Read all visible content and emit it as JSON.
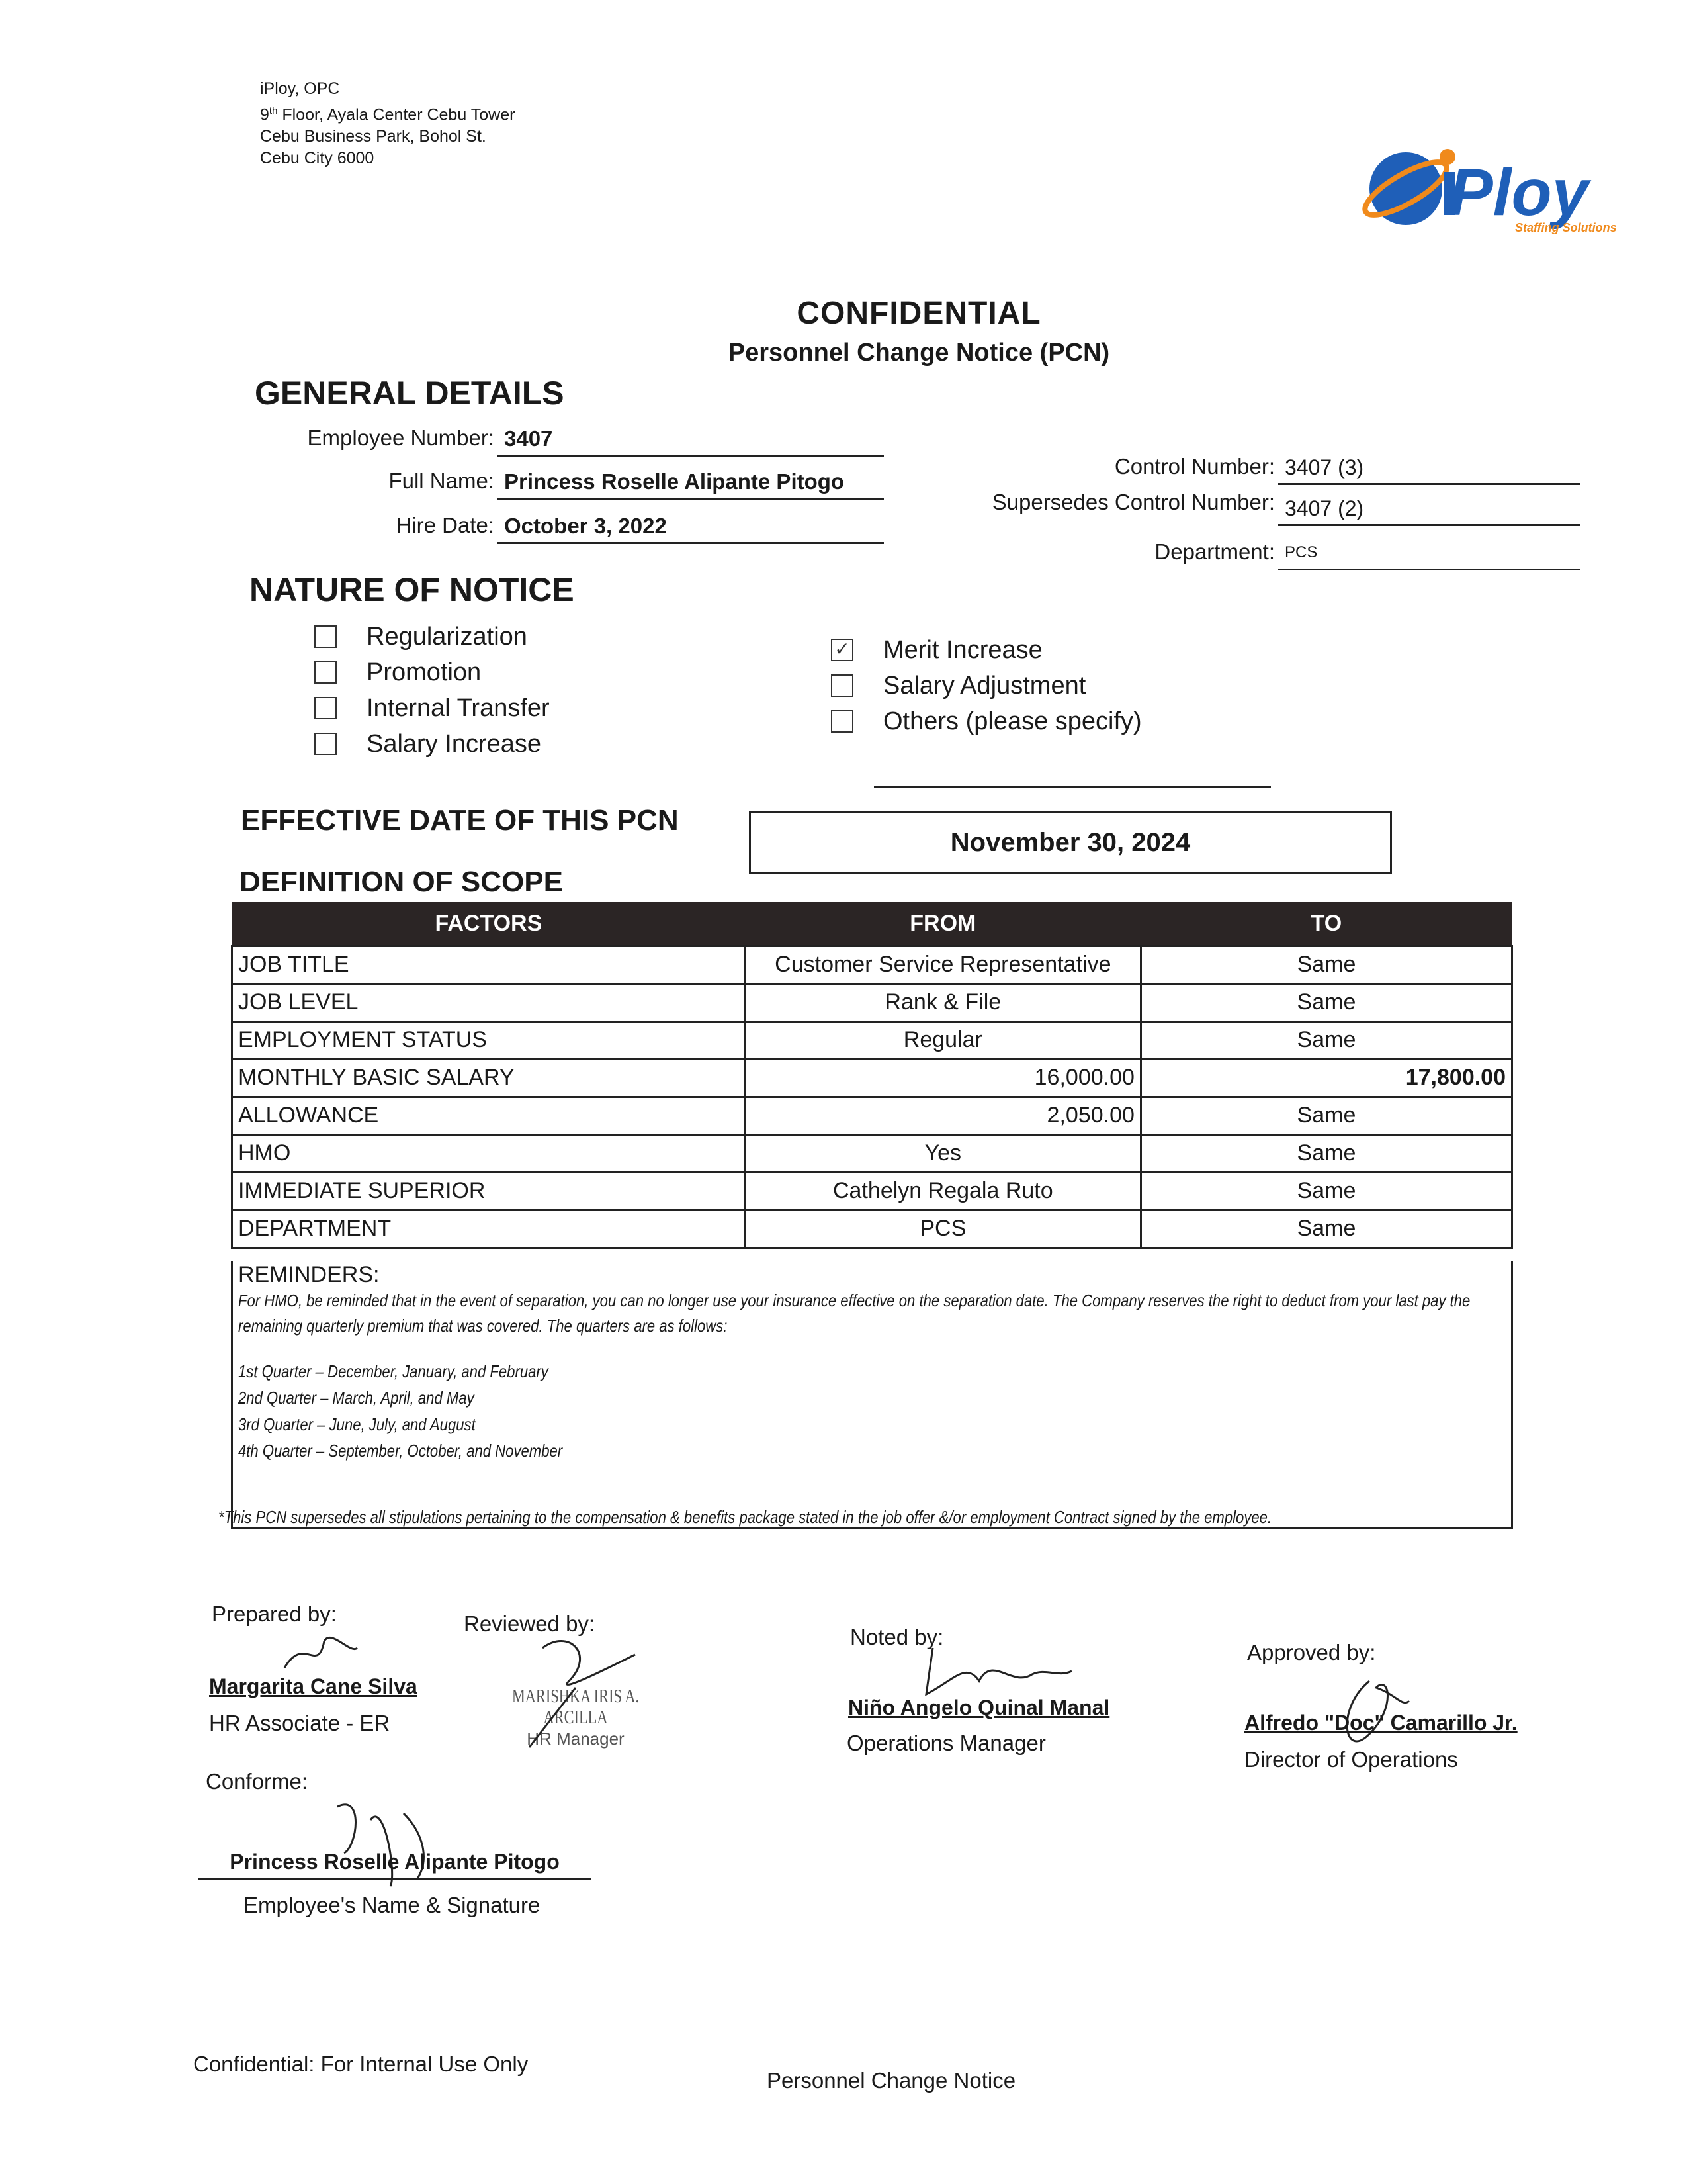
{
  "company_address": {
    "line1": "iPloy, OPC",
    "line2_num": "9",
    "line2_sup": "th",
    "line2_rest": " Floor, Ayala Center Cebu Tower",
    "line3": "Cebu Business Park, Bohol St.",
    "line4": "Cebu City 6000"
  },
  "logo": {
    "text": "iPloy",
    "tagline": "Staffing Solutions",
    "colors": {
      "blue": "#1f5fb8",
      "orange": "#f08a1c"
    }
  },
  "title": "CONFIDENTIAL",
  "subtitle": "Personnel Change Notice (PCN)",
  "general": {
    "heading": "GENERAL DETAILS",
    "employee_number_label": "Employee Number:",
    "employee_number": "3407",
    "full_name_label": "Full Name:",
    "full_name": "Princess Roselle Alipante Pitogo",
    "hire_date_label": "Hire Date:",
    "hire_date": "October 3, 2022",
    "control_number_label": "Control Number:",
    "control_number": "3407 (3)",
    "supersedes_label": "Supersedes Control Number:",
    "supersedes": "3407 (2)",
    "department_label": "Department:",
    "department": "PCS"
  },
  "nature": {
    "heading": "NATURE OF NOTICE",
    "options": [
      {
        "label": "Regularization",
        "checked": false
      },
      {
        "label": "Promotion",
        "checked": false
      },
      {
        "label": "Internal Transfer",
        "checked": false
      },
      {
        "label": "Salary Increase",
        "checked": false
      },
      {
        "label": "Merit Increase",
        "checked": true
      },
      {
        "label": "Salary Adjustment",
        "checked": false
      },
      {
        "label": "Others (please specify)",
        "checked": false
      }
    ],
    "others_value": ""
  },
  "effective": {
    "heading": "EFFECTIVE DATE OF THIS PCN",
    "date": "November 30, 2024"
  },
  "scope": {
    "heading": "DEFINITION OF SCOPE",
    "columns": [
      "FACTORS",
      "FROM",
      "TO"
    ],
    "rows": [
      [
        "JOB TITLE",
        "Customer Service Representative",
        "Same"
      ],
      [
        "JOB LEVEL",
        "Rank & File",
        "Same"
      ],
      [
        "EMPLOYMENT STATUS",
        "Regular",
        "Same"
      ],
      [
        "MONTHLY BASIC SALARY",
        "16,000.00",
        "17,800.00"
      ],
      [
        "ALLOWANCE",
        "2,050.00",
        "Same"
      ],
      [
        "HMO",
        "Yes",
        "Same"
      ],
      [
        "IMMEDIATE SUPERIOR",
        "Cathelyn Regala Ruto",
        "Same"
      ],
      [
        "DEPARTMENT",
        "PCS",
        "Same"
      ]
    ]
  },
  "reminders": {
    "heading": "REMINDERS:",
    "text": "For HMO, be reminded that in the event of separation, you can no longer use your insurance effective on the separation date.  The Company reserves the right to deduct from your last pay the remaining quarterly premium that was covered.  The quarters are as follows:",
    "quarters": [
      "1st Quarter – December, January, and February",
      "2nd Quarter – March, April, and May",
      "3rd Quarter – June, July, and August",
      "4th Quarter – September, October, and November"
    ]
  },
  "footnote": "*This PCN supersedes all stipulations pertaining to the compensation & benefits package stated in the job offer &/or employment Contract signed by the employee.",
  "signatories": {
    "prepared": {
      "label": "Prepared by:",
      "name": "Margarita Cane Silva",
      "title": "HR Associate - ER"
    },
    "reviewed": {
      "label": "Reviewed by:",
      "stamp_name": "MARISHKA IRIS A. ARCILLA",
      "stamp_title": "HR Manager"
    },
    "noted": {
      "label": "Noted by:",
      "name": "Niño Angelo Quinal Manal",
      "title": "Operations Manager"
    },
    "approved": {
      "label": "Approved by:",
      "name": "Alfredo \"Doc\" Camarillo Jr.",
      "title": "Director of Operations"
    },
    "conforme": {
      "label": "Conforme:",
      "name": "Princess Roselle Alipante Pitogo",
      "caption": "Employee's Name & Signature"
    }
  },
  "footer": {
    "left": "Confidential: For Internal Use Only",
    "right": "Personnel Change Notice"
  }
}
